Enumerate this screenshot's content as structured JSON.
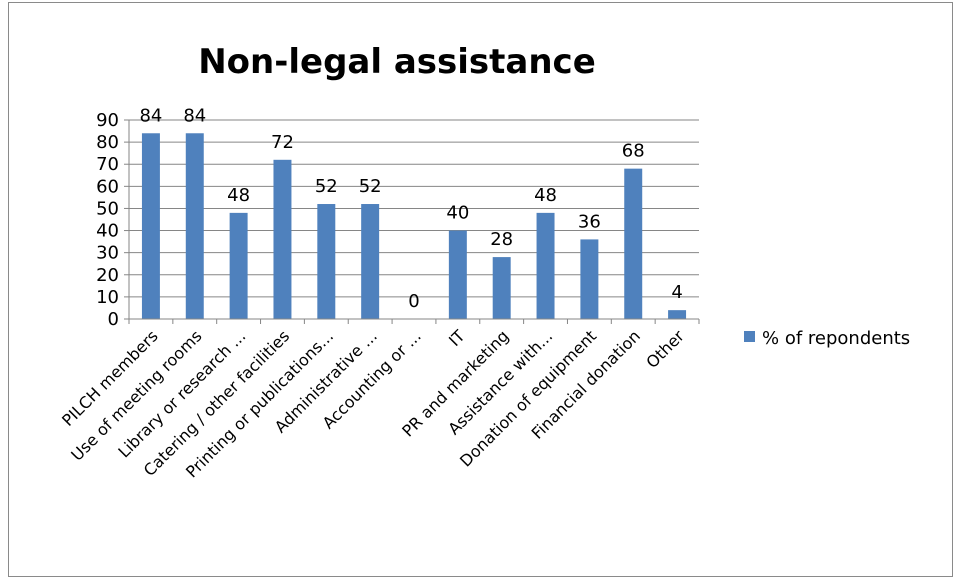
{
  "chart_data": {
    "type": "bar",
    "title": "Non-legal assistance",
    "xlabel": "",
    "ylabel": "",
    "ylim": [
      0,
      90
    ],
    "yticks": [
      0,
      10,
      20,
      30,
      40,
      50,
      60,
      70,
      80,
      90
    ],
    "grid": true,
    "legend_position": "right",
    "categories": [
      "PILCH members",
      "Use of meeting rooms",
      "Library or research ...",
      "Catering / other facilities",
      "Printing or publications...",
      "Administrative ...",
      "Accounting or ...",
      "IT",
      "PR and marketing",
      "Assistance with...",
      "Donation of equipment",
      "Financial donation",
      "Other"
    ],
    "series": [
      {
        "name": "% of repondents",
        "color": "#4f81bd",
        "values": [
          84,
          84,
          48,
          72,
          52,
          52,
          0,
          40,
          28,
          48,
          36,
          68,
          4
        ]
      }
    ]
  }
}
